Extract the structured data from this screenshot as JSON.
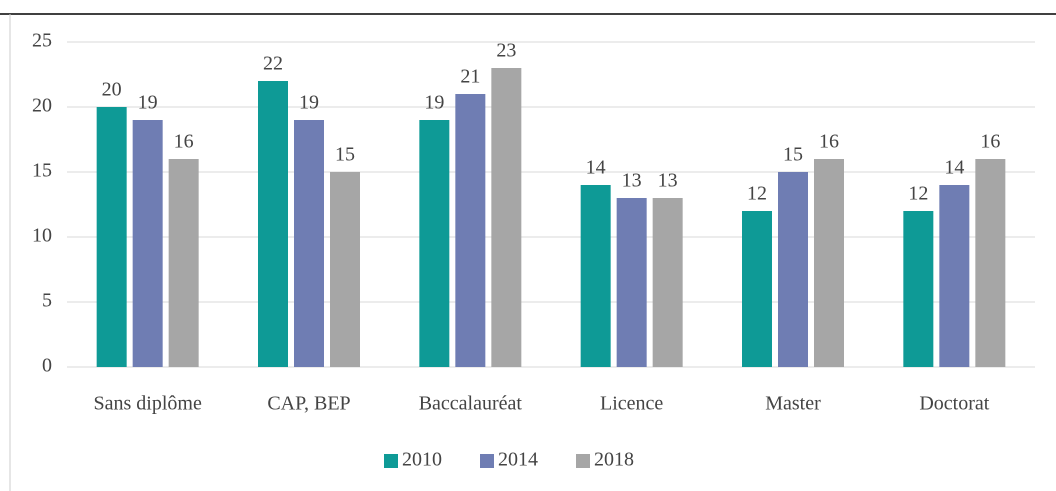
{
  "chart_data": {
    "type": "bar",
    "categories": [
      "Sans diplôme",
      "CAP, BEP",
      "Baccalauréat",
      "Licence",
      "Master",
      "Doctorat"
    ],
    "series": [
      {
        "name": "2010",
        "color": "#0e9a96",
        "values": [
          20,
          22,
          19,
          14,
          12,
          12
        ]
      },
      {
        "name": "2014",
        "color": "#6f7db3",
        "values": [
          19,
          19,
          21,
          13,
          15,
          14
        ]
      },
      {
        "name": "2018",
        "color": "#a6a6a6",
        "values": [
          16,
          15,
          23,
          13,
          16,
          16
        ]
      }
    ],
    "ylim": [
      0,
      25
    ],
    "yticks": [
      0,
      5,
      10,
      15,
      20,
      25
    ],
    "grid": true,
    "legend": "bottom"
  }
}
